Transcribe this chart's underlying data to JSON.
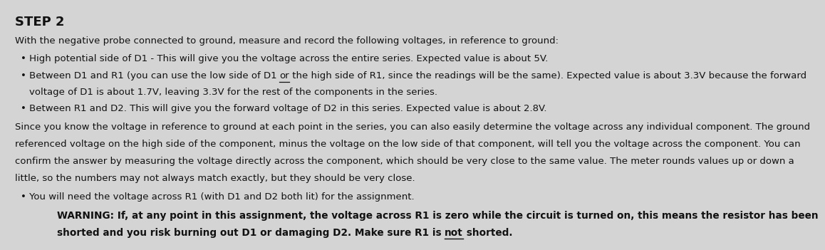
{
  "bg_color": "#d4d4d4",
  "title": "STEP 2",
  "title_fontsize": 13,
  "body_fontsize": 9.5,
  "warning_fontsize": 9.8,
  "text_color": "#111111",
  "intro": "With the negative probe connected to ground, measure and record the following voltages, in reference to ground:",
  "bullet1": "High potential side of D1 - This will give you the voltage across the entire series. Expected value is about 5V.",
  "bullet2_pre": "• Between D1 and R1 (you can use the low side of D1 ",
  "bullet2_or": "or",
  "bullet2_post": " the high side of R1, since the readings will be the same). Expected value is about 3.3V because the forward",
  "bullet2_line2": "voltage of D1 is about 1.7V, leaving 3.3V for the rest of the components in the series.",
  "bullet3": "Between R1 and D2. This will give you the forward voltage of D2 in this series. Expected value is about 2.8V.",
  "para_lines": [
    "Since you know the voltage in reference to ground at each point in the series, you can also easily determine the voltage across any individual component. The ground",
    "referenced voltage on the high side of the component, minus the voltage on the low side of that component, will tell you the voltage across the component. You can",
    "confirm the answer by measuring the voltage directly across the component, which should be very close to the same value. The meter rounds values up or down a",
    "little, so the numbers may not always match exactly, but they should be very close."
  ],
  "bullet4": "You will need the voltage across R1 (with D1 and D2 both lit) for the assignment.",
  "warn1": "WARNING: If, at any point in this assignment, the voltage across R1 is zero while the circuit is turned on, this means the resistor has been",
  "warn2_pre": "shorted and you risk burning out D1 or damaging D2. Make sure R1 is ",
  "warn2_not": "not",
  "warn2_post": " shorted."
}
